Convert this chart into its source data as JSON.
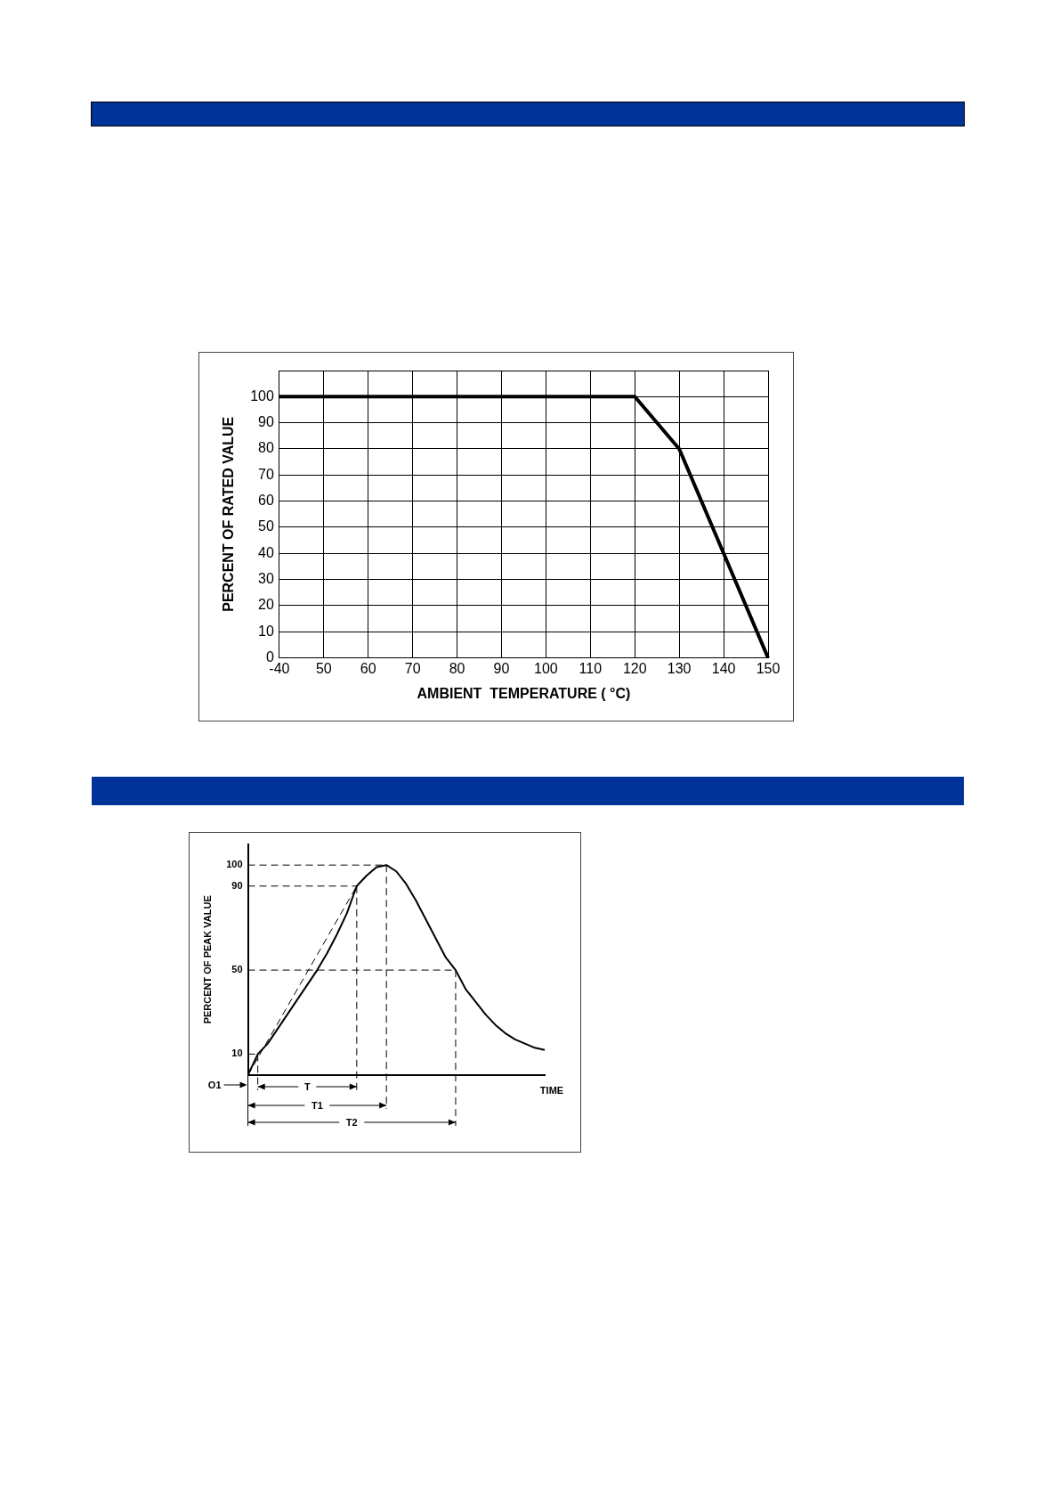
{
  "chart_data": [
    {
      "type": "line",
      "xlabel": "AMBIENT  TEMPERATURE ( °C)",
      "ylabel": "PERCENT OF RATED VALUE",
      "categories": [
        "-40",
        "50",
        "60",
        "70",
        "80",
        "90",
        "100",
        "110",
        "120",
        "130",
        "140",
        "150"
      ],
      "series": [
        {
          "color": "#000000",
          "values": [
            100,
            100,
            100,
            100,
            100,
            100,
            100,
            100,
            100,
            80,
            40,
            0
          ]
        }
      ],
      "ylim": [
        0,
        110
      ],
      "yticks": [
        0,
        10,
        20,
        30,
        40,
        50,
        60,
        70,
        80,
        90,
        100,
        {
          "value": 110,
          "label": null
        }
      ],
      "grid": true,
      "marker": "none",
      "line_style": "solid"
    },
    {
      "type": "line",
      "ylabel": "PERCENT OF PEAK VALUE",
      "categories": [
        null,
        null,
        null,
        null,
        null,
        null,
        null,
        null,
        null,
        null,
        null,
        null,
        null,
        null,
        null,
        null,
        null,
        null,
        null,
        null,
        null,
        null,
        null,
        null,
        null,
        null,
        null,
        null,
        null,
        null,
        null
      ],
      "series": [
        {
          "color": "#000000",
          "values": [
            0,
            10,
            15,
            22,
            29,
            36,
            43,
            50,
            58,
            67,
            77,
            90,
            95,
            99,
            100,
            97,
            91,
            83,
            74,
            65,
            56,
            50,
            41,
            35,
            29,
            24,
            20,
            17,
            15,
            13,
            12
          ]
        },
        {
          "color": "#000000",
          "line_style": "dashed",
          "values": [
            0,
            null,
            null,
            null,
            null,
            null,
            null,
            null,
            null,
            null,
            null,
            90,
            null,
            null,
            null,
            null,
            null,
            null,
            null,
            null,
            null,
            null,
            null,
            null,
            null,
            null,
            null,
            null,
            null,
            null,
            null
          ]
        },
        {
          "color": "#000000",
          "line_style": "dashed",
          "values": [
            100,
            100,
            100,
            100,
            100,
            100,
            100,
            100,
            100,
            100,
            100,
            100,
            100,
            100,
            100,
            null,
            null,
            null,
            null,
            null,
            null,
            null,
            null,
            null,
            null,
            null,
            null,
            null,
            null,
            null,
            null
          ]
        },
        {
          "color": "#000000",
          "line_style": "dashed",
          "values": [
            90,
            90,
            90,
            90,
            90,
            90,
            90,
            90,
            90,
            90,
            90,
            90,
            null,
            null,
            null,
            null,
            null,
            null,
            null,
            null,
            null,
            null,
            null,
            null,
            null,
            null,
            null,
            null,
            null,
            null,
            null
          ]
        },
        {
          "color": "#000000",
          "line_style": "dashed",
          "values": [
            50,
            50,
            50,
            50,
            50,
            50,
            50,
            50,
            50,
            50,
            50,
            50,
            50,
            50,
            50,
            50,
            50,
            50,
            50,
            50,
            50,
            50,
            null,
            null,
            null,
            null,
            null,
            null,
            null,
            null,
            null
          ]
        },
        {
          "color": "#000000",
          "line_style": "dashed",
          "values": [
            10,
            10,
            null,
            null,
            null,
            null,
            null,
            null,
            null,
            null,
            null,
            null,
            null,
            null,
            null,
            null,
            null,
            null,
            null,
            null,
            null,
            null,
            null,
            null,
            null,
            null,
            null,
            null,
            null,
            null,
            null
          ]
        }
      ],
      "ylim": [
        0,
        110
      ],
      "yticks": [
        10,
        50,
        90,
        100
      ],
      "tick_labels": "y",
      "marker": "none",
      "annotations": [
        "O1",
        "T",
        "T1",
        "T2",
        "TIME"
      ]
    }
  ]
}
